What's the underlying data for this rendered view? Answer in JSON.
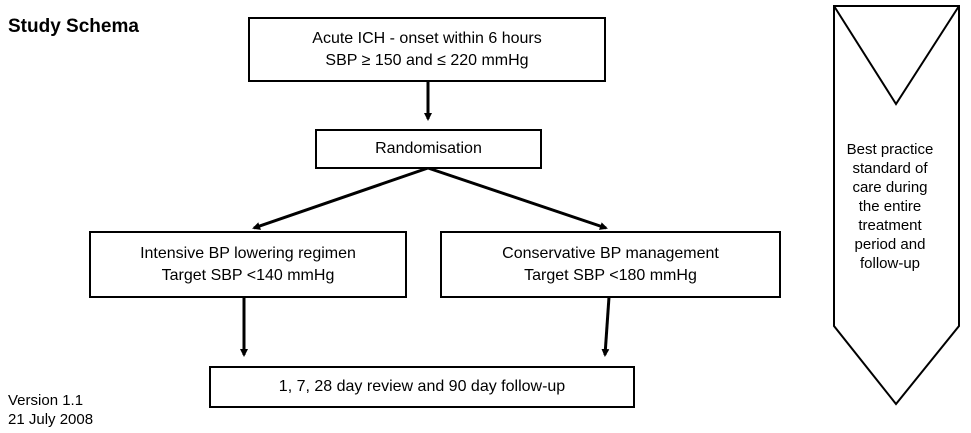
{
  "title": "Study Schema",
  "version": "Version 1.1",
  "date": "21 July 2008",
  "boxes": {
    "eligibility": [
      "Acute ICH - onset within 6 hours",
      "SBP ≥ 150 and ≤ 220 mmHg"
    ],
    "randomisation": "Randomisation",
    "intensive": [
      "Intensive BP lowering regimen",
      "Target SBP <140 mmHg"
    ],
    "conservative": [
      "Conservative BP management",
      "Target SBP <180 mmHg"
    ],
    "followup": "1, 7, 28 day review and 90 day follow-up"
  },
  "side_note": [
    "Best practice",
    "standard of",
    "care during",
    "the entire",
    "treatment",
    "period and",
    "follow-up"
  ]
}
